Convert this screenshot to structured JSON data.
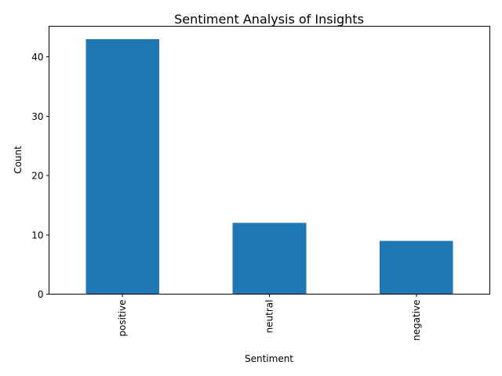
{
  "chart_data": {
    "type": "bar",
    "title": "Sentiment Analysis of Insights",
    "xlabel": "Sentiment",
    "ylabel": "Count",
    "categories": [
      "positive",
      "neutral",
      "negative"
    ],
    "values": [
      43,
      12,
      9
    ],
    "ylim": [
      0,
      45.15
    ],
    "yticks": [
      0,
      10,
      20,
      30,
      40
    ],
    "grid": false,
    "bar_color": "#1f77b4"
  }
}
